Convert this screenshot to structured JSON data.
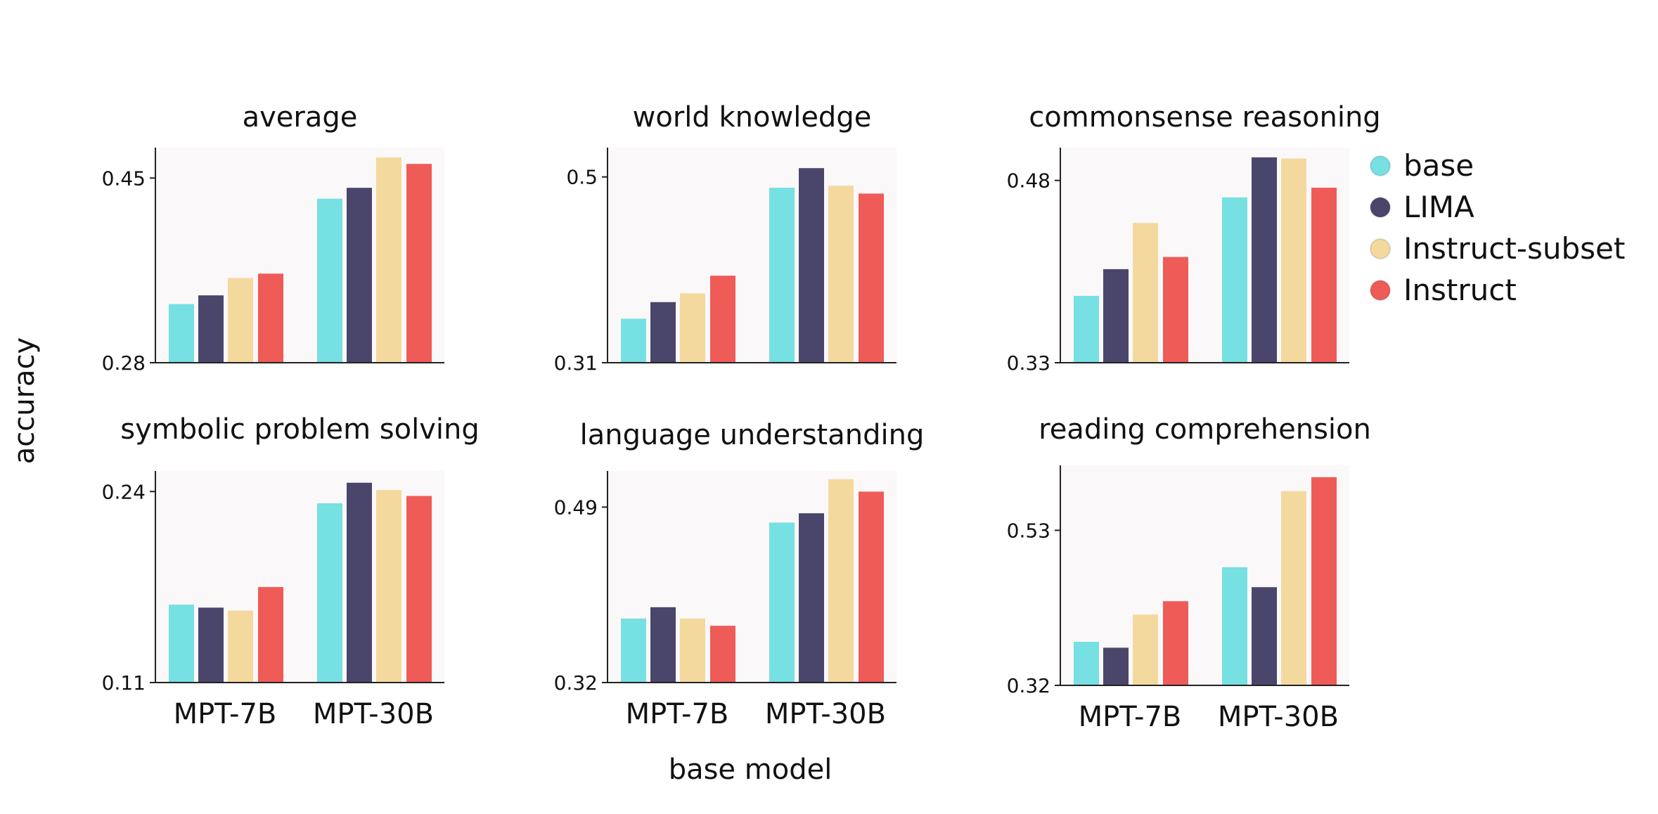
{
  "figure": {
    "ylabel": "accuracy",
    "xlabel": "base model"
  },
  "colors": {
    "base": "#76e0e2",
    "LIMA": "#4a466b",
    "Instruct-subset": "#f4d99e",
    "Instruct": "#ef5b57",
    "panel_bg": "#fbf8fa"
  },
  "legend": {
    "placement": "right",
    "items": [
      "base",
      "LIMA",
      "Instruct-subset",
      "Instruct"
    ]
  },
  "chart_data": [
    {
      "type": "bar",
      "title": "average",
      "categories": [
        "MPT-7B",
        "MPT-30B"
      ],
      "yticks": [
        0.28,
        0.45
      ],
      "ytick_labels": [
        "0.28",
        "0.45"
      ],
      "ylim": [
        0.28,
        0.478
      ],
      "series": [
        {
          "name": "base",
          "values": [
            0.334,
            0.431
          ]
        },
        {
          "name": "LIMA",
          "values": [
            0.342,
            0.441
          ]
        },
        {
          "name": "Instruct-subset",
          "values": [
            0.358,
            0.469
          ]
        },
        {
          "name": "Instruct",
          "values": [
            0.362,
            0.463
          ]
        }
      ]
    },
    {
      "type": "bar",
      "title": "world knowledge",
      "categories": [
        "MPT-7B",
        "MPT-30B"
      ],
      "yticks": [
        0.31,
        0.5
      ],
      "ytick_labels": [
        "0.31",
        "0.5"
      ],
      "ylim": [
        0.31,
        0.53
      ],
      "series": [
        {
          "name": "base",
          "values": [
            0.355,
            0.489
          ]
        },
        {
          "name": "LIMA",
          "values": [
            0.372,
            0.509
          ]
        },
        {
          "name": "Instruct-subset",
          "values": [
            0.381,
            0.491
          ]
        },
        {
          "name": "Instruct",
          "values": [
            0.399,
            0.483
          ]
        }
      ]
    },
    {
      "type": "bar",
      "title": "commonsense reasoning",
      "categories": [
        "MPT-7B",
        "MPT-30B"
      ],
      "yticks": [
        0.33,
        0.48
      ],
      "ytick_labels": [
        "0.33",
        "0.48"
      ],
      "ylim": [
        0.33,
        0.507
      ],
      "series": [
        {
          "name": "base",
          "values": [
            0.385,
            0.466
          ]
        },
        {
          "name": "LIMA",
          "values": [
            0.407,
            0.499
          ]
        },
        {
          "name": "Instruct-subset",
          "values": [
            0.445,
            0.498
          ]
        },
        {
          "name": "Instruct",
          "values": [
            0.417,
            0.474
          ]
        }
      ]
    },
    {
      "type": "bar",
      "title": "symbolic problem solving",
      "categories": [
        "MPT-7B",
        "MPT-30B"
      ],
      "yticks": [
        0.11,
        0.24
      ],
      "ytick_labels": [
        "0.11",
        "0.24"
      ],
      "ylim": [
        0.11,
        0.254
      ],
      "series": [
        {
          "name": "base",
          "values": [
            0.163,
            0.232
          ]
        },
        {
          "name": "LIMA",
          "values": [
            0.161,
            0.246
          ]
        },
        {
          "name": "Instruct-subset",
          "values": [
            0.159,
            0.241
          ]
        },
        {
          "name": "Instruct",
          "values": [
            0.175,
            0.237
          ]
        }
      ]
    },
    {
      "type": "bar",
      "title": "language understanding",
      "categories": [
        "MPT-7B",
        "MPT-30B"
      ],
      "yticks": [
        0.32,
        0.49
      ],
      "ytick_labels": [
        "0.32",
        "0.49"
      ],
      "ylim": [
        0.32,
        0.525
      ],
      "series": [
        {
          "name": "base",
          "values": [
            0.382,
            0.475
          ]
        },
        {
          "name": "LIMA",
          "values": [
            0.393,
            0.484
          ]
        },
        {
          "name": "Instruct-subset",
          "values": [
            0.382,
            0.517
          ]
        },
        {
          "name": "Instruct",
          "values": [
            0.375,
            0.505
          ]
        }
      ]
    },
    {
      "type": "bar",
      "title": "reading comprehension",
      "categories": [
        "MPT-7B",
        "MPT-30B"
      ],
      "yticks": [
        0.32,
        0.53
      ],
      "ytick_labels": [
        "0.32",
        "0.53"
      ],
      "ylim": [
        0.32,
        0.618
      ],
      "series": [
        {
          "name": "base",
          "values": [
            0.379,
            0.48
          ]
        },
        {
          "name": "LIMA",
          "values": [
            0.371,
            0.453
          ]
        },
        {
          "name": "Instruct-subset",
          "values": [
            0.416,
            0.583
          ]
        },
        {
          "name": "Instruct",
          "values": [
            0.434,
            0.602
          ]
        }
      ]
    }
  ]
}
